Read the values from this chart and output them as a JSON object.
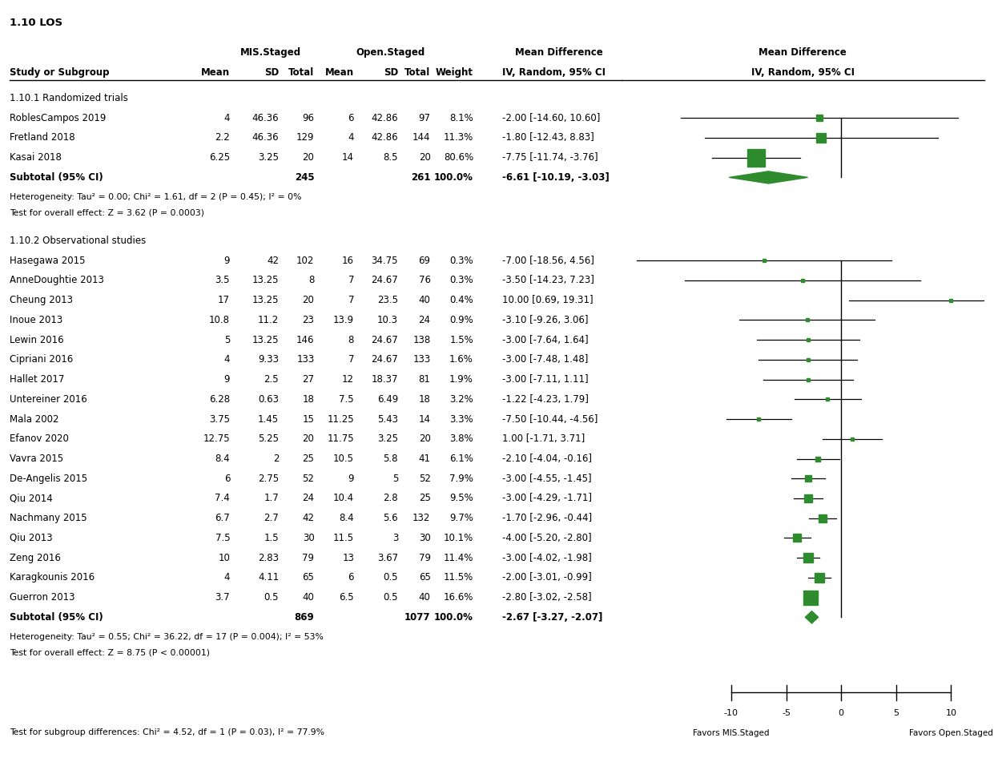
{
  "title": "1.10 LOS",
  "col_headers": {
    "mis_staged": "MIS.Staged",
    "open_staged": "Open.Staged",
    "mean_diff_text": "Mean Difference",
    "mean_diff_plot": "Mean Difference",
    "study_col": "Study or Subgroup"
  },
  "group1_label": "1.10.1 Randomized trials",
  "group1_studies": [
    {
      "study": "RoblesCampos 2019",
      "mis_mean": "4",
      "mis_sd": "46.36",
      "mis_n": "96",
      "open_mean": "6",
      "open_sd": "42.86",
      "open_n": "97",
      "weight": "8.1%",
      "md": -2.0,
      "ci_lo": -14.6,
      "ci_hi": 10.6,
      "ci_text": "-2.00 [-14.60, 10.60]"
    },
    {
      "study": "Fretland 2018",
      "mis_mean": "2.2",
      "mis_sd": "46.36",
      "mis_n": "129",
      "open_mean": "4",
      "open_sd": "42.86",
      "open_n": "144",
      "weight": "11.3%",
      "md": -1.8,
      "ci_lo": -12.43,
      "ci_hi": 8.83,
      "ci_text": "-1.80 [-12.43, 8.83]"
    },
    {
      "study": "Kasai 2018",
      "mis_mean": "6.25",
      "mis_sd": "3.25",
      "mis_n": "20",
      "open_mean": "14",
      "open_sd": "8.5",
      "open_n": "20",
      "weight": "80.6%",
      "md": -7.75,
      "ci_lo": -11.74,
      "ci_hi": -3.76,
      "ci_text": "-7.75 [-11.74, -3.76]"
    }
  ],
  "group1_subtotal": {
    "mis_n": "245",
    "open_n": "261",
    "weight": "100.0%",
    "md": -6.61,
    "ci_lo": -10.19,
    "ci_hi": -3.03,
    "ci_text": "-6.61 [-10.19, -3.03]"
  },
  "group1_het": "Heterogeneity: Tau² = 0.00; Chi² = 1.61, df = 2 (P = 0.45); I² = 0%",
  "group1_test": "Test for overall effect: Z = 3.62 (P = 0.0003)",
  "group2_label": "1.10.2 Observational studies",
  "group2_studies": [
    {
      "study": "Hasegawa 2015",
      "mis_mean": "9",
      "mis_sd": "42",
      "mis_n": "102",
      "open_mean": "16",
      "open_sd": "34.75",
      "open_n": "69",
      "weight": "0.3%",
      "md": -7.0,
      "ci_lo": -18.56,
      "ci_hi": 4.56,
      "ci_text": "-7.00 [-18.56, 4.56]"
    },
    {
      "study": "AnneDoughtie 2013",
      "mis_mean": "3.5",
      "mis_sd": "13.25",
      "mis_n": "8",
      "open_mean": "7",
      "open_sd": "24.67",
      "open_n": "76",
      "weight": "0.3%",
      "md": -3.5,
      "ci_lo": -14.23,
      "ci_hi": 7.23,
      "ci_text": "-3.50 [-14.23, 7.23]"
    },
    {
      "study": "Cheung 2013",
      "mis_mean": "17",
      "mis_sd": "13.25",
      "mis_n": "20",
      "open_mean": "7",
      "open_sd": "23.5",
      "open_n": "40",
      "weight": "0.4%",
      "md": 10.0,
      "ci_lo": 0.69,
      "ci_hi": 19.31,
      "ci_text": "10.00 [0.69, 19.31]"
    },
    {
      "study": "Inoue 2013",
      "mis_mean": "10.8",
      "mis_sd": "11.2",
      "mis_n": "23",
      "open_mean": "13.9",
      "open_sd": "10.3",
      "open_n": "24",
      "weight": "0.9%",
      "md": -3.1,
      "ci_lo": -9.26,
      "ci_hi": 3.06,
      "ci_text": "-3.10 [-9.26, 3.06]"
    },
    {
      "study": "Lewin 2016",
      "mis_mean": "5",
      "mis_sd": "13.25",
      "mis_n": "146",
      "open_mean": "8",
      "open_sd": "24.67",
      "open_n": "138",
      "weight": "1.5%",
      "md": -3.0,
      "ci_lo": -7.64,
      "ci_hi": 1.64,
      "ci_text": "-3.00 [-7.64, 1.64]"
    },
    {
      "study": "Cipriani 2016",
      "mis_mean": "4",
      "mis_sd": "9.33",
      "mis_n": "133",
      "open_mean": "7",
      "open_sd": "24.67",
      "open_n": "133",
      "weight": "1.6%",
      "md": -3.0,
      "ci_lo": -7.48,
      "ci_hi": 1.48,
      "ci_text": "-3.00 [-7.48, 1.48]"
    },
    {
      "study": "Hallet 2017",
      "mis_mean": "9",
      "mis_sd": "2.5",
      "mis_n": "27",
      "open_mean": "12",
      "open_sd": "18.37",
      "open_n": "81",
      "weight": "1.9%",
      "md": -3.0,
      "ci_lo": -7.11,
      "ci_hi": 1.11,
      "ci_text": "-3.00 [-7.11, 1.11]"
    },
    {
      "study": "Untereiner 2016",
      "mis_mean": "6.28",
      "mis_sd": "0.63",
      "mis_n": "18",
      "open_mean": "7.5",
      "open_sd": "6.49",
      "open_n": "18",
      "weight": "3.2%",
      "md": -1.22,
      "ci_lo": -4.23,
      "ci_hi": 1.79,
      "ci_text": "-1.22 [-4.23, 1.79]"
    },
    {
      "study": "Mala 2002",
      "mis_mean": "3.75",
      "mis_sd": "1.45",
      "mis_n": "15",
      "open_mean": "11.25",
      "open_sd": "5.43",
      "open_n": "14",
      "weight": "3.3%",
      "md": -7.5,
      "ci_lo": -10.44,
      "ci_hi": -4.56,
      "ci_text": "-7.50 [-10.44, -4.56]"
    },
    {
      "study": "Efanov 2020",
      "mis_mean": "12.75",
      "mis_sd": "5.25",
      "mis_n": "20",
      "open_mean": "11.75",
      "open_sd": "3.25",
      "open_n": "20",
      "weight": "3.8%",
      "md": 1.0,
      "ci_lo": -1.71,
      "ci_hi": 3.71,
      "ci_text": "1.00 [-1.71, 3.71]"
    },
    {
      "study": "Vavra 2015",
      "mis_mean": "8.4",
      "mis_sd": "2",
      "mis_n": "25",
      "open_mean": "10.5",
      "open_sd": "5.8",
      "open_n": "41",
      "weight": "6.1%",
      "md": -2.1,
      "ci_lo": -4.04,
      "ci_hi": -0.16,
      "ci_text": "-2.10 [-4.04, -0.16]"
    },
    {
      "study": "De-Angelis 2015",
      "mis_mean": "6",
      "mis_sd": "2.75",
      "mis_n": "52",
      "open_mean": "9",
      "open_sd": "5",
      "open_n": "52",
      "weight": "7.9%",
      "md": -3.0,
      "ci_lo": -4.55,
      "ci_hi": -1.45,
      "ci_text": "-3.00 [-4.55, -1.45]"
    },
    {
      "study": "Qiu 2014",
      "mis_mean": "7.4",
      "mis_sd": "1.7",
      "mis_n": "24",
      "open_mean": "10.4",
      "open_sd": "2.8",
      "open_n": "25",
      "weight": "9.5%",
      "md": -3.0,
      "ci_lo": -4.29,
      "ci_hi": -1.71,
      "ci_text": "-3.00 [-4.29, -1.71]"
    },
    {
      "study": "Nachmany 2015",
      "mis_mean": "6.7",
      "mis_sd": "2.7",
      "mis_n": "42",
      "open_mean": "8.4",
      "open_sd": "5.6",
      "open_n": "132",
      "weight": "9.7%",
      "md": -1.7,
      "ci_lo": -2.96,
      "ci_hi": -0.44,
      "ci_text": "-1.70 [-2.96, -0.44]"
    },
    {
      "study": "Qiu 2013",
      "mis_mean": "7.5",
      "mis_sd": "1.5",
      "mis_n": "30",
      "open_mean": "11.5",
      "open_sd": "3",
      "open_n": "30",
      "weight": "10.1%",
      "md": -4.0,
      "ci_lo": -5.2,
      "ci_hi": -2.8,
      "ci_text": "-4.00 [-5.20, -2.80]"
    },
    {
      "study": "Zeng 2016",
      "mis_mean": "10",
      "mis_sd": "2.83",
      "mis_n": "79",
      "open_mean": "13",
      "open_sd": "3.67",
      "open_n": "79",
      "weight": "11.4%",
      "md": -3.0,
      "ci_lo": -4.02,
      "ci_hi": -1.98,
      "ci_text": "-3.00 [-4.02, -1.98]"
    },
    {
      "study": "Karagkounis 2016",
      "mis_mean": "4",
      "mis_sd": "4.11",
      "mis_n": "65",
      "open_mean": "6",
      "open_sd": "0.5",
      "open_n": "65",
      "weight": "11.5%",
      "md": -2.0,
      "ci_lo": -3.01,
      "ci_hi": -0.99,
      "ci_text": "-2.00 [-3.01, -0.99]"
    },
    {
      "study": "Guerron 2013",
      "mis_mean": "3.7",
      "mis_sd": "0.5",
      "mis_n": "40",
      "open_mean": "6.5",
      "open_sd": "0.5",
      "open_n": "40",
      "weight": "16.6%",
      "md": -2.8,
      "ci_lo": -3.02,
      "ci_hi": -2.58,
      "ci_text": "-2.80 [-3.02, -2.58]"
    }
  ],
  "group2_subtotal": {
    "mis_n": "869",
    "open_n": "1077",
    "weight": "100.0%",
    "md": -2.67,
    "ci_lo": -3.27,
    "ci_hi": -2.07,
    "ci_text": "-2.67 [-3.27, -2.07]"
  },
  "group2_het": "Heterogeneity: Tau² = 0.55; Chi² = 36.22, df = 17 (P = 0.004); I² = 53%",
  "group2_test": "Test for overall effect: Z = 8.75 (P < 0.00001)",
  "subgroup_test": "Test for subgroup differences: Chi² = 4.52, df = 1 (P = 0.03), I² = 77.9%",
  "axis_min": -20,
  "axis_max": 13,
  "axis_ticks": [
    -10,
    -5,
    0,
    5,
    10
  ],
  "favors_left": "Favors MIS.Staged",
  "favors_right": "Favors Open.Staged",
  "plot_color": "#2e8b2e",
  "diamond_color": "#2e8b2e",
  "bg_color": "#ffffff",
  "text_color": "#000000"
}
